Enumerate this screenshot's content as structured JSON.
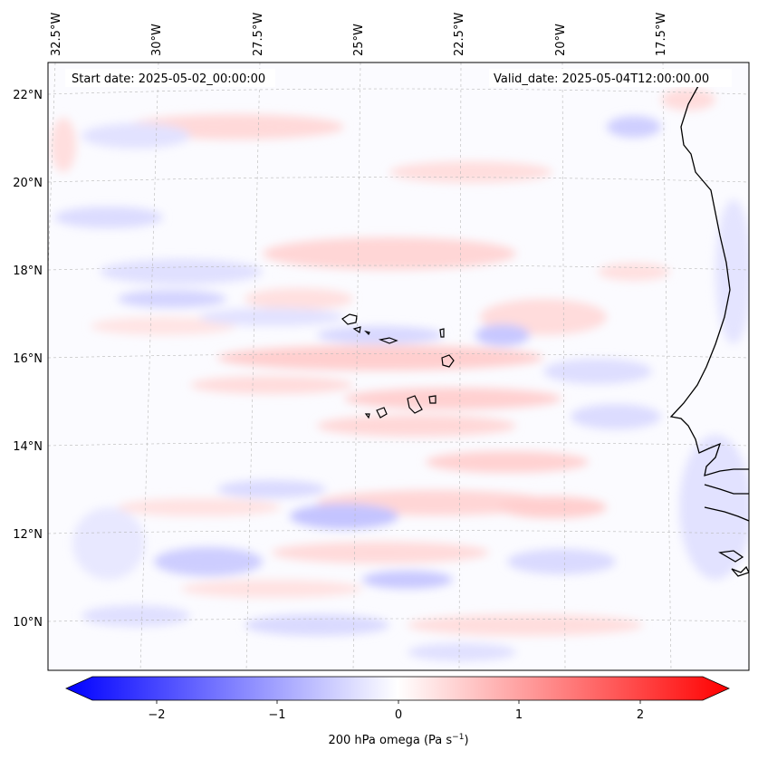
{
  "header": {
    "start_date": "Start date: 2025-05-02_00:00:00",
    "valid_date": "Valid_date: 2025-05-04T12:00:00.00"
  },
  "map": {
    "lon_labels": [
      "32.5°W",
      "30°W",
      "27.5°W",
      "25°W",
      "22.5°W",
      "20°W",
      "17.5°W"
    ],
    "lat_labels": [
      "22°N",
      "20°N",
      "18°N",
      "16°N",
      "14°N",
      "12°N",
      "10°N"
    ],
    "field_colors": {
      "positive": "#ff0000",
      "negative": "#0000ff",
      "zero": "#ffffff"
    }
  },
  "colorbar": {
    "ticks": [
      "−2",
      "−1",
      "0",
      "1",
      "2"
    ],
    "label": "200 hPa omega (Pa s",
    "label_sup": "−1",
    "label_close": ")",
    "range": [
      -2.6,
      2.6
    ]
  }
}
